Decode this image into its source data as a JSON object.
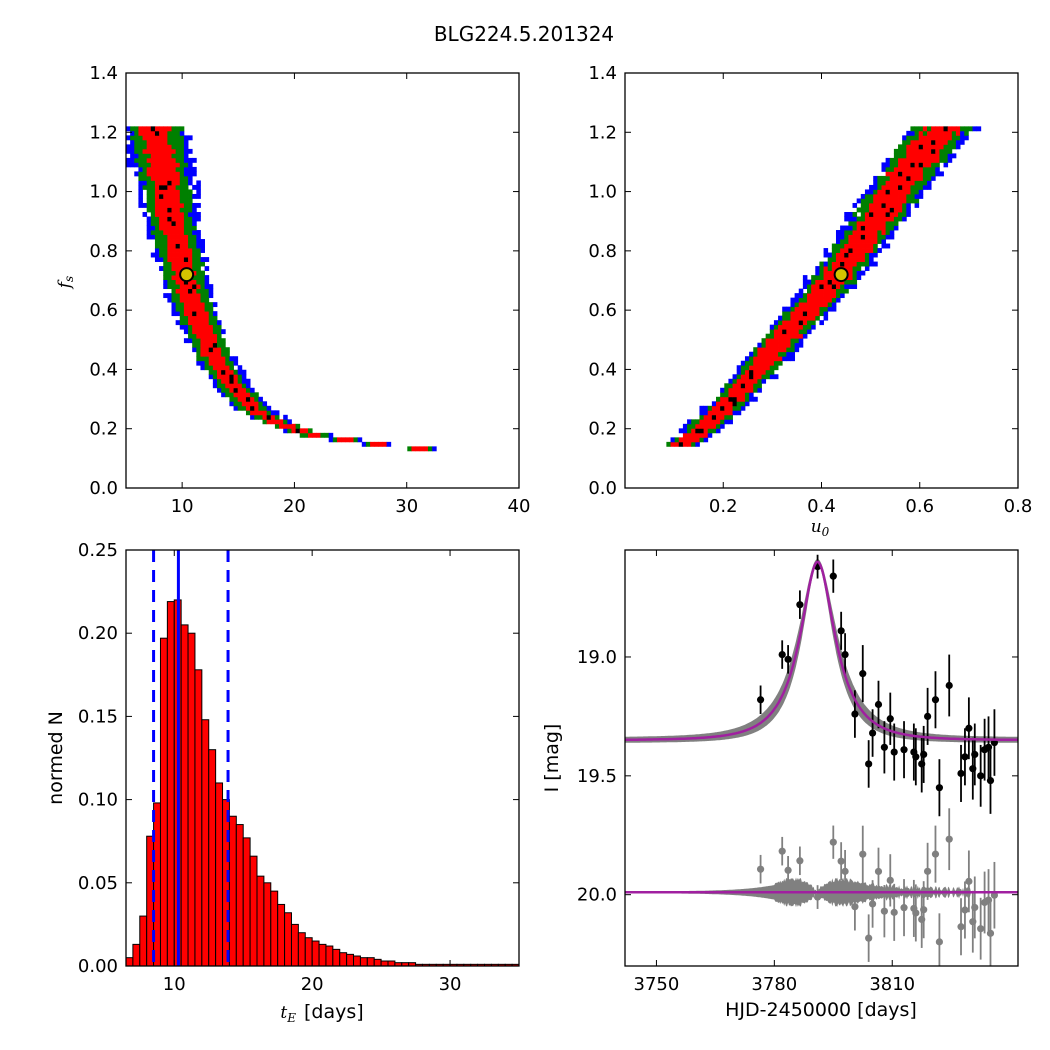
{
  "title": "BLG224.5.201324",
  "chart_data": [
    {
      "type": "heatmap",
      "panel": "top-left",
      "xlim": [
        5,
        40
      ],
      "ylim": [
        0.0,
        1.4
      ],
      "xticks": [
        "10",
        "20",
        "30",
        "40"
      ],
      "yticks": [
        "0.0",
        "0.2",
        "0.4",
        "0.6",
        "0.8",
        "1.0",
        "1.2",
        "1.4"
      ],
      "xlabel": "",
      "ylabel": "f",
      "ylabel_sub": "s",
      "colors": {
        "outer": "#0000ff",
        "mid": "#008000",
        "inner": "#ff0000",
        "core": "#000000",
        "best": "#d4c400"
      },
      "best_fit": {
        "x": 10.4,
        "y": 0.72
      },
      "ridge": [
        [
          7.5,
          1.22
        ],
        [
          8.4,
          1.05
        ],
        [
          9.2,
          0.88
        ],
        [
          10.2,
          0.72
        ],
        [
          11.3,
          0.58
        ],
        [
          12.6,
          0.46
        ],
        [
          14.2,
          0.36
        ],
        [
          16.2,
          0.27
        ],
        [
          18.5,
          0.22
        ],
        [
          21.5,
          0.18
        ],
        [
          25.0,
          0.16
        ],
        [
          29.0,
          0.14
        ],
        [
          32.0,
          0.13
        ]
      ],
      "half_widths": [
        1.1,
        1.9,
        2.4,
        2.6
      ]
    },
    {
      "type": "heatmap",
      "panel": "top-right",
      "xlim": [
        0.0,
        0.8
      ],
      "ylim": [
        0.0,
        1.4
      ],
      "xticks": [
        "0.2",
        "0.4",
        "0.6",
        "0.8"
      ],
      "yticks": [
        "0.0",
        "0.2",
        "0.4",
        "0.6",
        "0.8",
        "1.0",
        "1.2",
        "1.4"
      ],
      "xlabel": "u",
      "xlabel_sub": "0",
      "ylabel": "",
      "colors": {
        "outer": "#0000ff",
        "mid": "#008000",
        "inner": "#ff0000",
        "core": "#000000",
        "best": "#d4c400"
      },
      "best_fit": {
        "x": 0.44,
        "y": 0.72
      },
      "ridge": [
        [
          0.11,
          0.14
        ],
        [
          0.16,
          0.2
        ],
        [
          0.22,
          0.3
        ],
        [
          0.28,
          0.42
        ],
        [
          0.34,
          0.54
        ],
        [
          0.4,
          0.65
        ],
        [
          0.45,
          0.76
        ],
        [
          0.5,
          0.88
        ],
        [
          0.55,
          1.0
        ],
        [
          0.6,
          1.12
        ],
        [
          0.65,
          1.22
        ]
      ],
      "half_widths": [
        0.03,
        0.045,
        0.055,
        0.06
      ]
    },
    {
      "type": "bar",
      "panel": "bottom-left",
      "xlim": [
        6.5,
        35
      ],
      "ylim": [
        0.0,
        0.25
      ],
      "xticks": [
        "10",
        "20",
        "30"
      ],
      "yticks": [
        "0.00",
        "0.05",
        "0.10",
        "0.15",
        "0.20",
        "0.25"
      ],
      "xlabel": "t",
      "xlabel_sub": "E",
      "xlabel_unit": "[days]",
      "ylabel": "normed N",
      "bin_start": 6.5,
      "bin_width": 0.5,
      "values": [
        0.005,
        0.013,
        0.03,
        0.078,
        0.098,
        0.197,
        0.219,
        0.22,
        0.205,
        0.2,
        0.178,
        0.148,
        0.13,
        0.11,
        0.1,
        0.09,
        0.085,
        0.077,
        0.066,
        0.054,
        0.05,
        0.045,
        0.037,
        0.032,
        0.025,
        0.02,
        0.017,
        0.015,
        0.013,
        0.012,
        0.01,
        0.008,
        0.007,
        0.006,
        0.005,
        0.005,
        0.004,
        0.003,
        0.003,
        0.002,
        0.002,
        0.002,
        0.001,
        0.001,
        0.001,
        0.001,
        0.001,
        0.001,
        0.001,
        0.001,
        0.001,
        0.001,
        0.001,
        0.001,
        0.001,
        0.001,
        0.001
      ],
      "vlines": {
        "median": 10.3,
        "lower": 8.5,
        "upper": 13.9
      },
      "colors": {
        "bar": "#ff0000",
        "edge": "#000000",
        "line": "#0000ff"
      }
    },
    {
      "type": "line",
      "panel": "bottom-right",
      "xlim": [
        3742,
        3842
      ],
      "ylim": [
        20.3,
        18.55
      ],
      "xticks": [
        "3750",
        "3780",
        "3810"
      ],
      "yticks": [
        "19.0",
        "19.5",
        "20.0"
      ],
      "xlabel": "HJD-2450000 [days]",
      "ylabel": "I [mag]",
      "model": {
        "t0": 3791,
        "base": 19.35,
        "peak": 18.6,
        "tE": 10.3,
        "u0": 0.44
      },
      "residual_level": 19.99,
      "colors": {
        "model": "#a020a0",
        "band": "#808080",
        "points": "#000000",
        "residuals": "#808080"
      },
      "points": [
        {
          "t": 3776.5,
          "mag": 19.18,
          "err": 0.06
        },
        {
          "t": 3782.0,
          "mag": 18.99,
          "err": 0.06
        },
        {
          "t": 3783.5,
          "mag": 19.01,
          "err": 0.06
        },
        {
          "t": 3786.5,
          "mag": 18.78,
          "err": 0.06
        },
        {
          "t": 3791.0,
          "mag": 18.62,
          "err": 0.05
        },
        {
          "t": 3795.0,
          "mag": 18.66,
          "err": 0.07
        },
        {
          "t": 3797.0,
          "mag": 18.89,
          "err": 0.08
        },
        {
          "t": 3798.0,
          "mag": 18.99,
          "err": 0.09
        },
        {
          "t": 3800.5,
          "mag": 19.24,
          "err": 0.1
        },
        {
          "t": 3802.5,
          "mag": 19.07,
          "err": 0.12
        },
        {
          "t": 3804.0,
          "mag": 19.45,
          "err": 0.1
        },
        {
          "t": 3805.0,
          "mag": 19.32,
          "err": 0.1
        },
        {
          "t": 3806.5,
          "mag": 19.2,
          "err": 0.1
        },
        {
          "t": 3808.0,
          "mag": 19.38,
          "err": 0.11
        },
        {
          "t": 3809.5,
          "mag": 19.26,
          "err": 0.11
        },
        {
          "t": 3810.5,
          "mag": 19.4,
          "err": 0.12
        },
        {
          "t": 3813.0,
          "mag": 19.39,
          "err": 0.12
        },
        {
          "t": 3815.5,
          "mag": 19.4,
          "err": 0.12
        },
        {
          "t": 3816.0,
          "mag": 19.42,
          "err": 0.12
        },
        {
          "t": 3817.5,
          "mag": 19.45,
          "err": 0.12
        },
        {
          "t": 3818.0,
          "mag": 19.41,
          "err": 0.12
        },
        {
          "t": 3819.0,
          "mag": 19.25,
          "err": 0.12
        },
        {
          "t": 3821.0,
          "mag": 19.18,
          "err": 0.12
        },
        {
          "t": 3822.0,
          "mag": 19.55,
          "err": 0.12
        },
        {
          "t": 3824.5,
          "mag": 19.12,
          "err": 0.13
        },
        {
          "t": 3827.5,
          "mag": 19.49,
          "err": 0.12
        },
        {
          "t": 3828.5,
          "mag": 19.42,
          "err": 0.12
        },
        {
          "t": 3829.5,
          "mag": 19.3,
          "err": 0.13
        },
        {
          "t": 3830.5,
          "mag": 19.47,
          "err": 0.13
        },
        {
          "t": 3831.0,
          "mag": 19.41,
          "err": 0.13
        },
        {
          "t": 3832.5,
          "mag": 19.5,
          "err": 0.13
        },
        {
          "t": 3833.5,
          "mag": 19.39,
          "err": 0.13
        },
        {
          "t": 3834.5,
          "mag": 19.38,
          "err": 0.13
        },
        {
          "t": 3835.0,
          "mag": 19.52,
          "err": 0.14
        },
        {
          "t": 3836.0,
          "mag": 19.36,
          "err": 0.14
        }
      ]
    }
  ]
}
